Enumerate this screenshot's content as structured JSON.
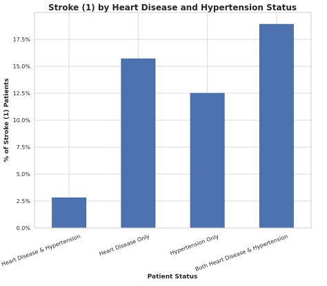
{
  "chart_data": {
    "type": "bar",
    "title": "Stroke (1) by Heart Disease and Hypertension Status",
    "xlabel": "Patient Status",
    "ylabel": "% of Stroke (1) Patients",
    "categories": [
      "No Heart Disease & Hypertension",
      "Heart Disease Only",
      "Hypertension Only",
      "Both Heart Disease & Hypertension"
    ],
    "values": [
      2.8,
      15.7,
      12.5,
      18.9
    ],
    "ylim": [
      0,
      20
    ],
    "yticks": [
      0,
      2.5,
      5,
      7.5,
      10,
      12.5,
      15,
      17.5
    ],
    "ytick_labels": [
      "0.0%",
      "2.5%",
      "5.0%",
      "7.5%",
      "10.0%",
      "12.5%",
      "15.0%",
      "17.5%"
    ],
    "grid": true,
    "colors": {
      "bar": "#4c72b0",
      "grid": "#d9d9d9",
      "axis": "#cccccc",
      "text": "#262626"
    }
  }
}
